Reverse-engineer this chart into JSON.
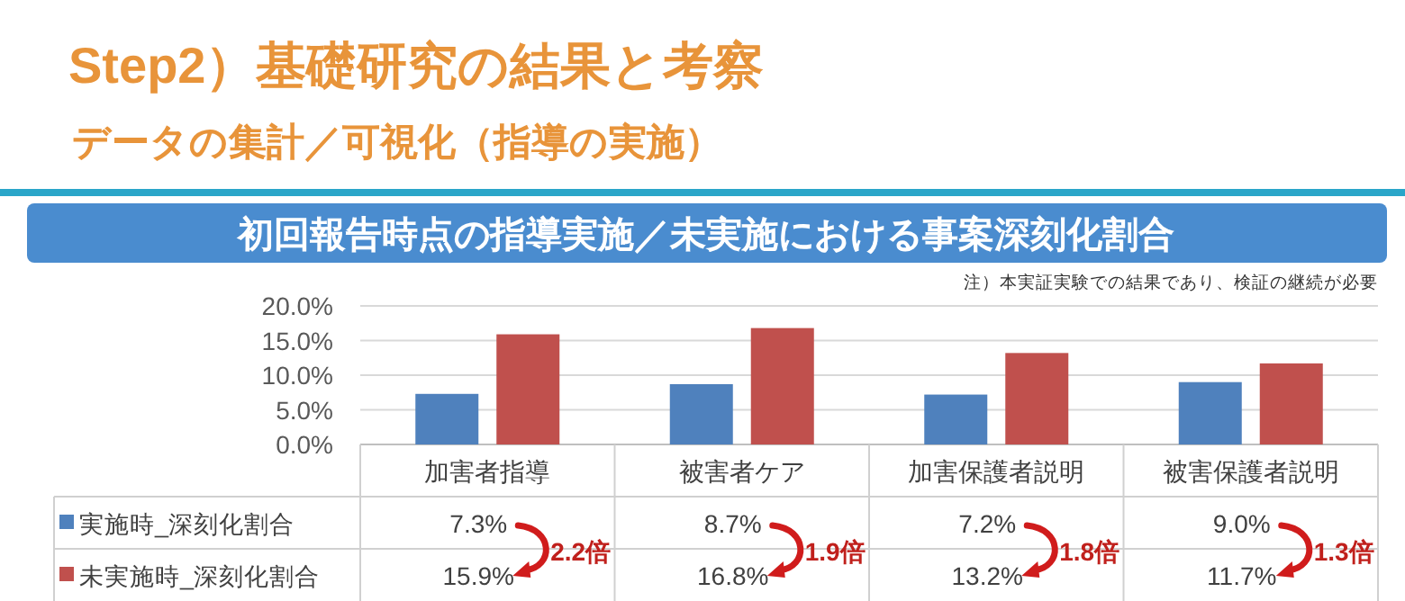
{
  "chart_data": {
    "type": "bar",
    "title": "初回報告時点の指導実施／未実施における事案深刻化割合",
    "categories": [
      "加害者指導",
      "被害者ケア",
      "加害保護者説明",
      "被害保護者説明"
    ],
    "series": [
      {
        "name": "実施時_深刻化割合",
        "color": "#4f81bd",
        "values": [
          7.3,
          8.7,
          7.2,
          9.0
        ],
        "value_labels": [
          "7.3%",
          "8.7%",
          "7.2%",
          "9.0%"
        ]
      },
      {
        "name": "未実施時_深刻化割合",
        "color": "#c0504d",
        "values": [
          15.9,
          16.8,
          13.2,
          11.7
        ],
        "value_labels": [
          "15.9%",
          "16.8%",
          "13.2%",
          "11.7%"
        ]
      }
    ],
    "ylim": [
      0,
      20
    ],
    "yticks": [
      {
        "value": 0,
        "label": "0.0%"
      },
      {
        "value": 5,
        "label": "5.0%"
      },
      {
        "value": 10,
        "label": "10.0%"
      },
      {
        "value": 15,
        "label": "15.0%"
      },
      {
        "value": 20,
        "label": "20.0%"
      }
    ],
    "grid": "y",
    "legend": "bottom",
    "annotations": [
      "Step2）基礎研究の結果と考察",
      "データの集計／可視化（指導の実施）",
      "注）本実証実験での結果であり、検証の継続が必要",
      "2.2倍",
      "1.9倍",
      "1.8倍",
      "1.3倍"
    ]
  }
}
